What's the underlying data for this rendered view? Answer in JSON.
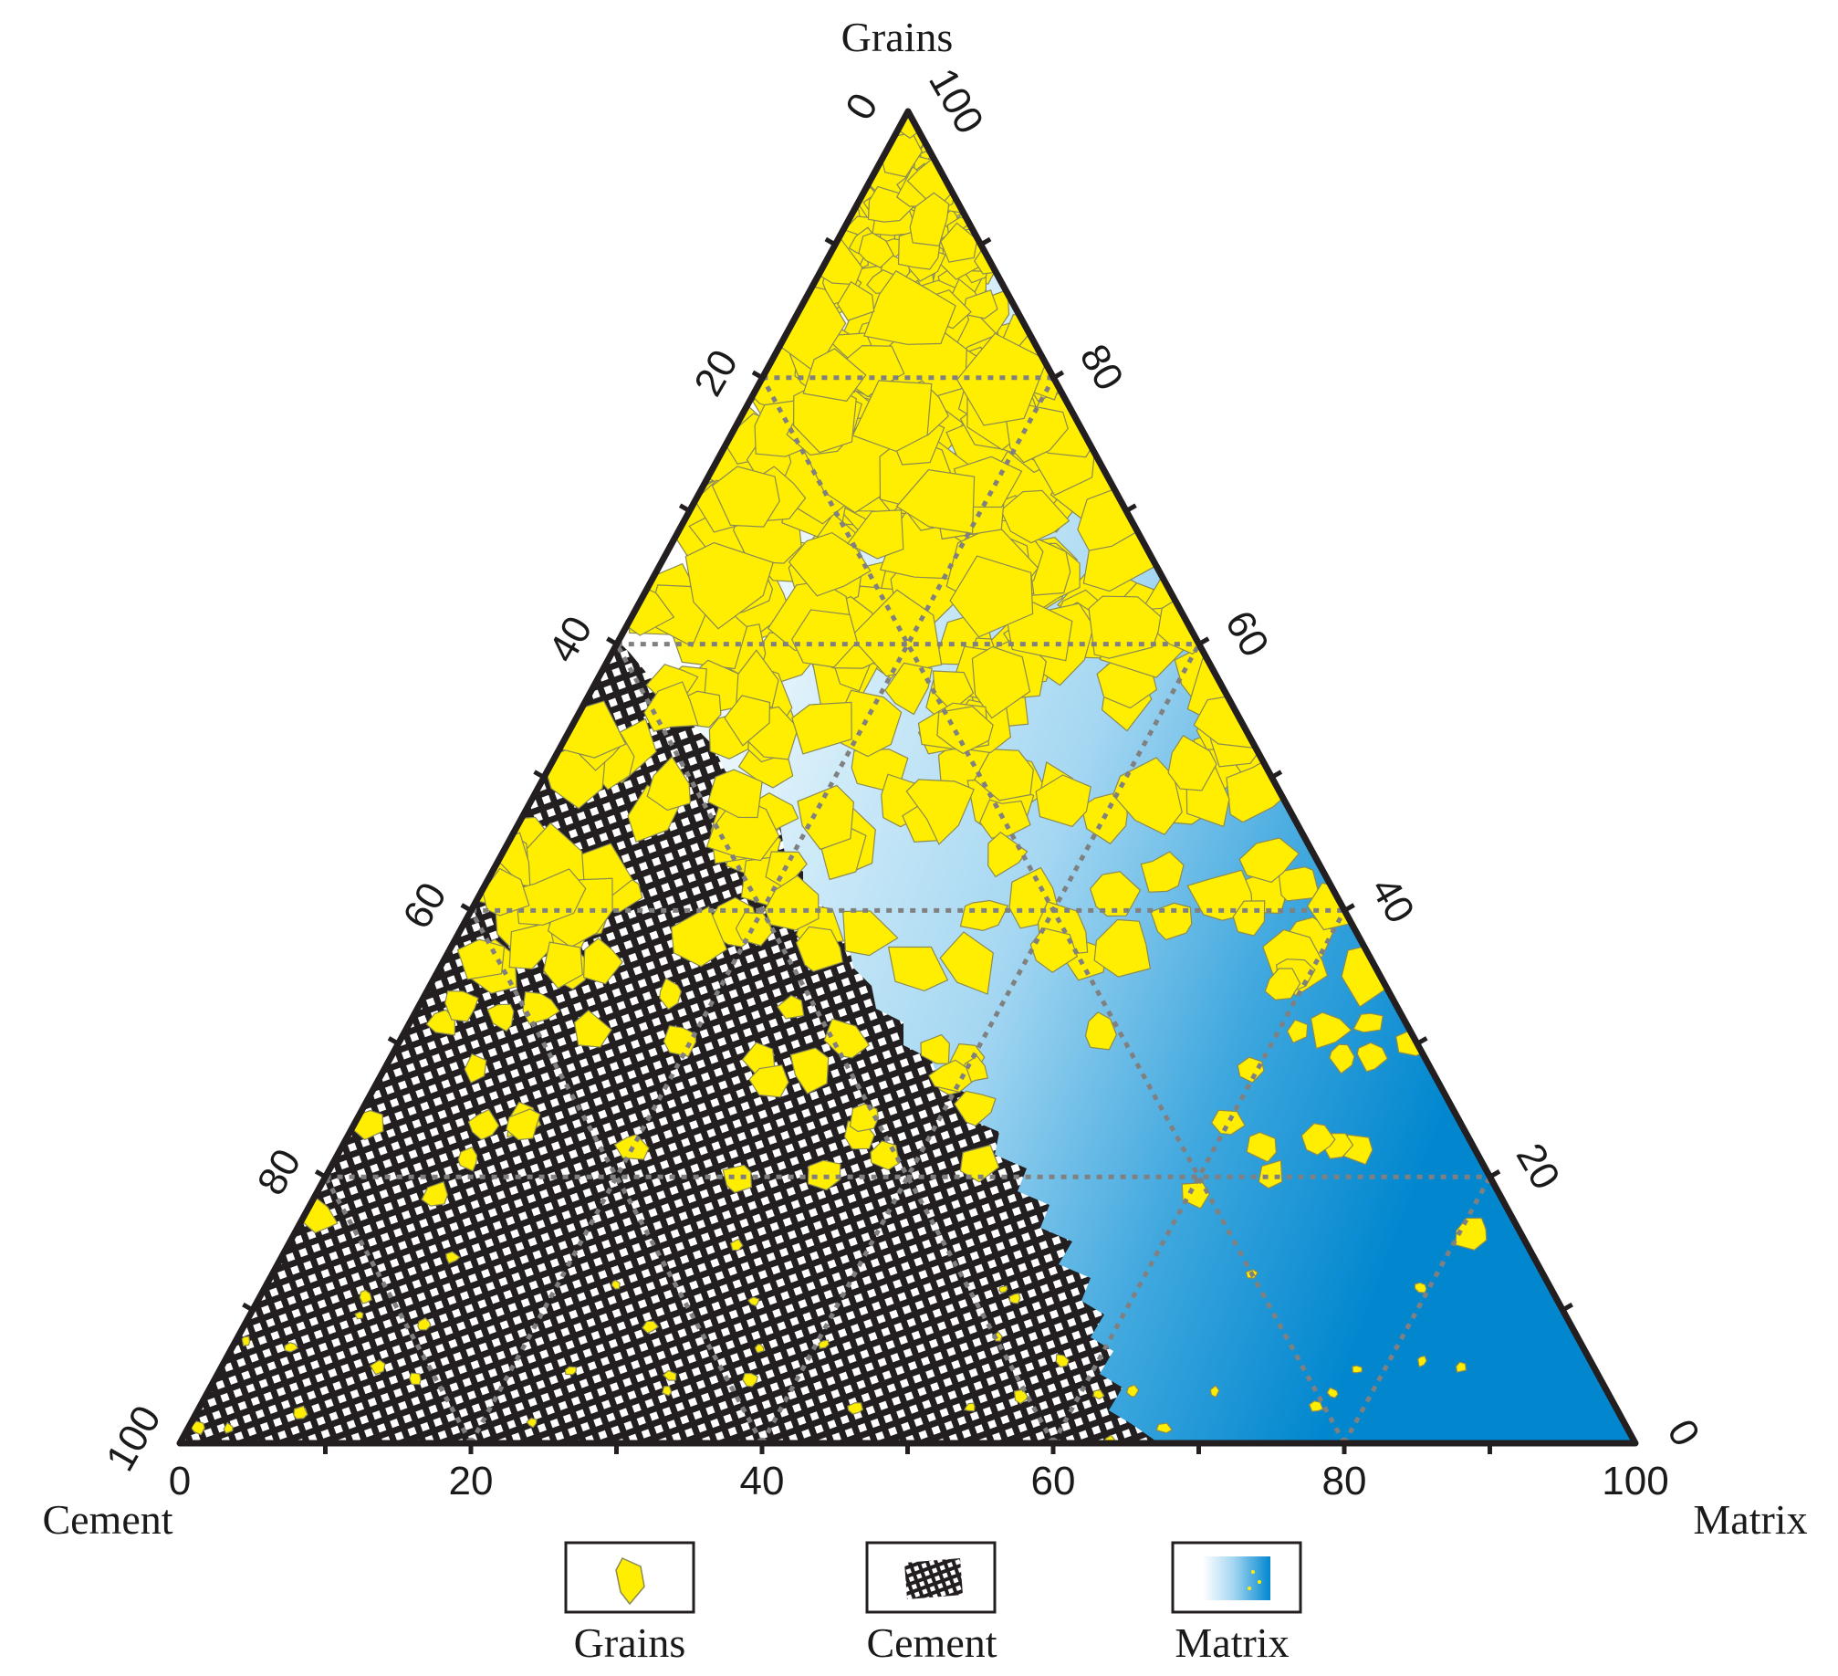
{
  "vertices": {
    "top": "Grains",
    "left": "Cement",
    "right": "Matrix"
  },
  "axis_ticks": {
    "bottom": [
      "0",
      "20",
      "40",
      "60",
      "80",
      "100"
    ],
    "left": [
      "0",
      "20",
      "40",
      "60",
      "80",
      "100"
    ],
    "right": [
      "0",
      "20",
      "40",
      "60",
      "80",
      "100"
    ]
  },
  "legend": {
    "items": [
      {
        "label": "Grains",
        "icon": "grain-swatch-icon"
      },
      {
        "label": "Cement",
        "icon": "cement-mesh-swatch-icon"
      },
      {
        "label": "Matrix",
        "icon": "matrix-gradient-swatch-icon"
      }
    ]
  },
  "colors": {
    "grains": "#ffee00",
    "cement": "#231f20",
    "matrix_light": "#a7d8f2",
    "matrix_dark": "#0287cf",
    "grid": "#808080",
    "frame": "#231f20"
  }
}
